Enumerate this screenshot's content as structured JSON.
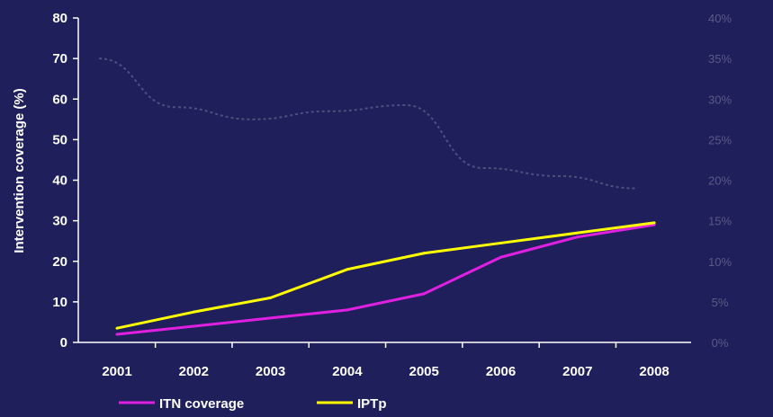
{
  "chart_data": {
    "type": "line",
    "title": "",
    "xlabel": "",
    "ylabel": "Intervention coverage (%)",
    "x": [
      "2001",
      "2002",
      "2003",
      "2004",
      "2005",
      "2006",
      "2007",
      "2008"
    ],
    "ylim": [
      0,
      80
    ],
    "yticks": [
      "0",
      "10",
      "20",
      "30",
      "40",
      "50",
      "60",
      "70",
      "80"
    ],
    "grid": false,
    "legend_position": "bottom",
    "series": [
      {
        "name": "ITN coverage",
        "color": "#e020e0",
        "values": [
          2,
          4,
          6,
          8,
          12,
          21,
          26,
          29
        ]
      },
      {
        "name": "IPTp",
        "color": "#ffff00",
        "values": [
          3.5,
          7.5,
          11,
          18,
          22,
          24.5,
          27,
          29.5
        ]
      }
    ],
    "faded_series": {
      "color": "#8a8aa8",
      "values": [
        70,
        58,
        55,
        57,
        58.5,
        43,
        41,
        38
      ],
      "right_axis_ticks": [
        "0%",
        "5%",
        "10%",
        "15%",
        "20%",
        "25%",
        "30%",
        "35%",
        "40%"
      ]
    }
  }
}
